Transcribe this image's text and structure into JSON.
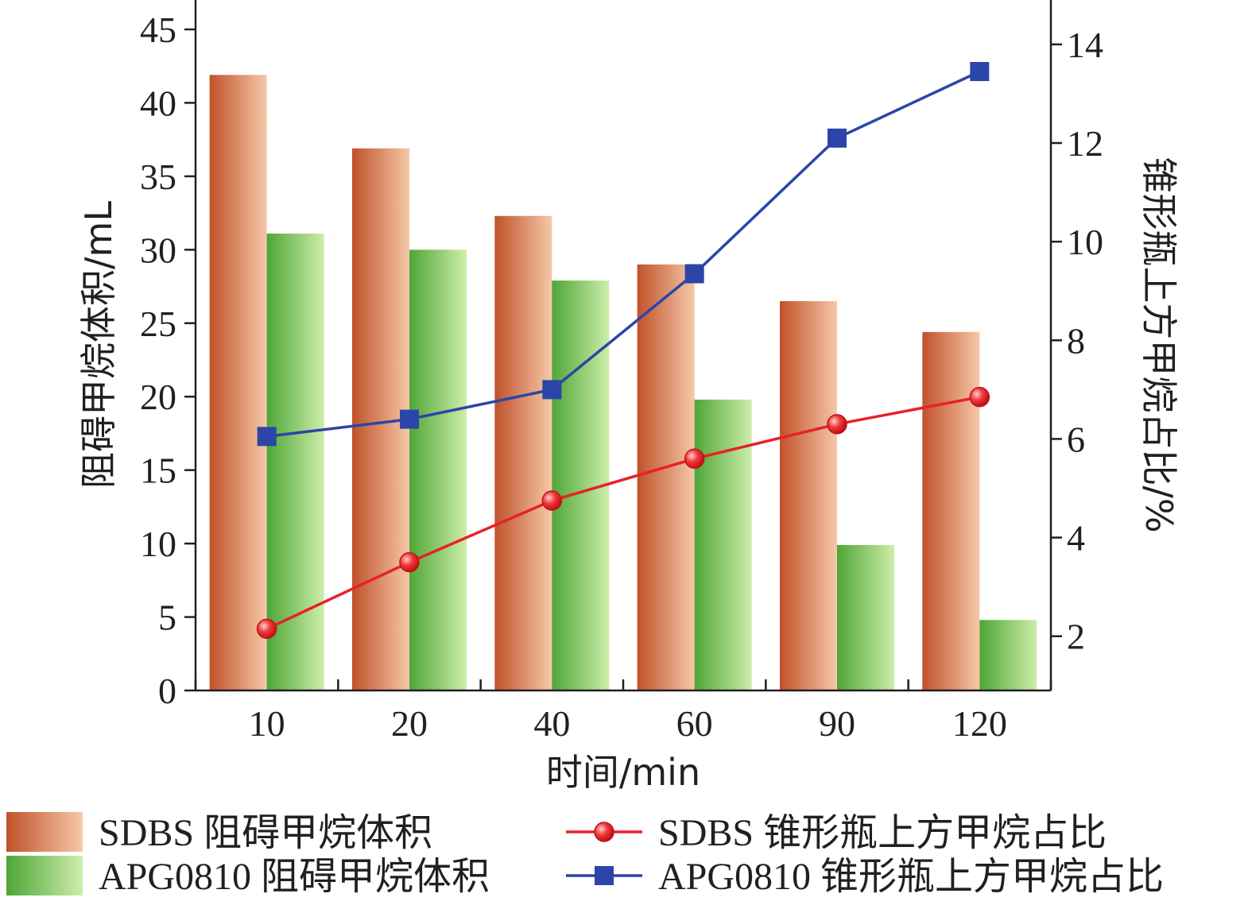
{
  "chart_data": {
    "type": "bar",
    "categories": [
      "10",
      "20",
      "40",
      "60",
      "90",
      "120"
    ],
    "xlabel": "时间/min",
    "ylabel": "阻碍甲烷体积/mL",
    "y2label": "锥形瓶上方甲烷占比/%",
    "ylim": [
      0,
      47
    ],
    "y2lim": [
      0.9,
      14.9
    ],
    "yticks": [
      0,
      5,
      10,
      15,
      20,
      25,
      30,
      35,
      40,
      45
    ],
    "y2ticks": [
      2,
      4,
      6,
      8,
      10,
      12,
      14
    ],
    "grid": false,
    "legend_position": "bottom",
    "bar_series": [
      {
        "name": "SDBS 阻碍甲烷体积",
        "values": [
          41.9,
          36.9,
          32.3,
          29.0,
          26.5,
          24.4
        ],
        "color_dark": "#c0522a",
        "color_light": "#f6c8a8"
      },
      {
        "name": "APG0810 阻碍甲烷体积",
        "values": [
          31.1,
          30.0,
          27.9,
          19.8,
          9.9,
          4.8
        ],
        "color_dark": "#4fa637",
        "color_light": "#cdeeaa"
      }
    ],
    "line_series": [
      {
        "name": "SDBS 锥形瓶上方甲烷占比",
        "axis": "right",
        "marker": "circle",
        "color": "#e8202a",
        "values": [
          2.15,
          3.5,
          4.75,
          5.6,
          6.3,
          6.85
        ]
      },
      {
        "name": "APG0810 锥形瓶上方甲烷占比",
        "axis": "right",
        "marker": "square",
        "color": "#2b45a8",
        "values": [
          6.05,
          6.4,
          7.0,
          9.35,
          12.1,
          13.45
        ]
      }
    ]
  },
  "legend": {
    "items": [
      {
        "label": "SDBS 阻碍甲烷体积",
        "kind": "bar",
        "series": 0
      },
      {
        "label": "APG0810 阻碍甲烷体积",
        "kind": "bar",
        "series": 1
      },
      {
        "label": "SDBS 锥形瓶上方甲烷占比",
        "kind": "line",
        "series": 0
      },
      {
        "label": "APG0810 锥形瓶上方甲烷占比",
        "kind": "line",
        "series": 1
      }
    ]
  }
}
